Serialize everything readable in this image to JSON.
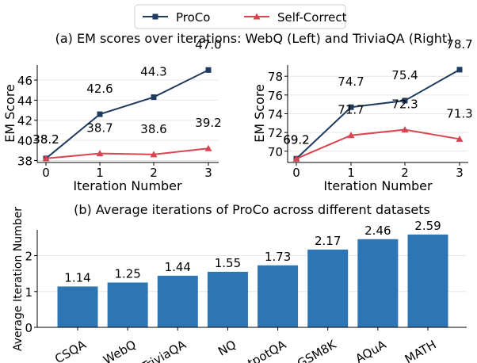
{
  "legend": {
    "items": [
      {
        "name": "ProCo",
        "color": "#1f3b5e",
        "marker": "square"
      },
      {
        "name": "Self-Correct",
        "color": "#d94451",
        "marker": "triangle"
      }
    ]
  },
  "chart_data": [
    {
      "type": "line",
      "title": "(a) EM scores over iterations: WebQ (Left) and TriviaQA (Right)",
      "xlabel": "Iteration Number",
      "ylabel": "EM Score",
      "x": [
        0,
        1,
        2,
        3
      ],
      "xticks": [
        "0",
        "1",
        "2",
        "3"
      ],
      "yticks": [
        38,
        40,
        42,
        44,
        46
      ],
      "ylim": [
        37.8,
        47.5
      ],
      "grid": "y",
      "series": [
        {
          "name": "ProCo",
          "values": [
            38.2,
            42.6,
            44.3,
            47.0
          ],
          "labels": [
            "38.2",
            "42.6",
            "44.3",
            "47.0"
          ]
        },
        {
          "name": "Self-Correct",
          "values": [
            38.2,
            38.7,
            38.6,
            39.2
          ],
          "labels": [
            "38.2",
            "38.7",
            "38.6",
            "39.2"
          ]
        }
      ]
    },
    {
      "type": "line",
      "xlabel": "Iteration Number",
      "ylabel": "EM Score",
      "x": [
        0,
        1,
        2,
        3
      ],
      "xticks": [
        "0",
        "1",
        "2",
        "3"
      ],
      "yticks": [
        70,
        72,
        74,
        76,
        78
      ],
      "ylim": [
        68.8,
        79.2
      ],
      "grid": "y",
      "series": [
        {
          "name": "ProCo",
          "values": [
            69.2,
            74.7,
            75.4,
            78.7
          ],
          "labels": [
            "69.2",
            "74.7",
            "75.4",
            "78.7"
          ]
        },
        {
          "name": "Self-Correct",
          "values": [
            69.2,
            71.7,
            72.3,
            71.3
          ],
          "labels": [
            "69.2",
            "71.7",
            "72.3",
            "71.3"
          ]
        }
      ]
    },
    {
      "type": "bar",
      "title": "(b) Average iterations of ProCo across different datasets",
      "ylabel": "Average Iteration Number",
      "categories": [
        "CSQA",
        "WebQ",
        "TriviaQA",
        "NQ",
        "HotpotQA",
        "GSM8K",
        "AQuA",
        "MATH"
      ],
      "values": [
        1.14,
        1.25,
        1.44,
        1.55,
        1.73,
        2.17,
        2.46,
        2.59
      ],
      "labels": [
        "1.14",
        "1.25",
        "1.44",
        "1.55",
        "1.73",
        "2.17",
        "2.46",
        "2.59"
      ],
      "yticks": [
        0,
        1,
        2
      ],
      "ylim": [
        0,
        2.72
      ],
      "grid": "y",
      "bar_color": "#2e75b6"
    }
  ]
}
